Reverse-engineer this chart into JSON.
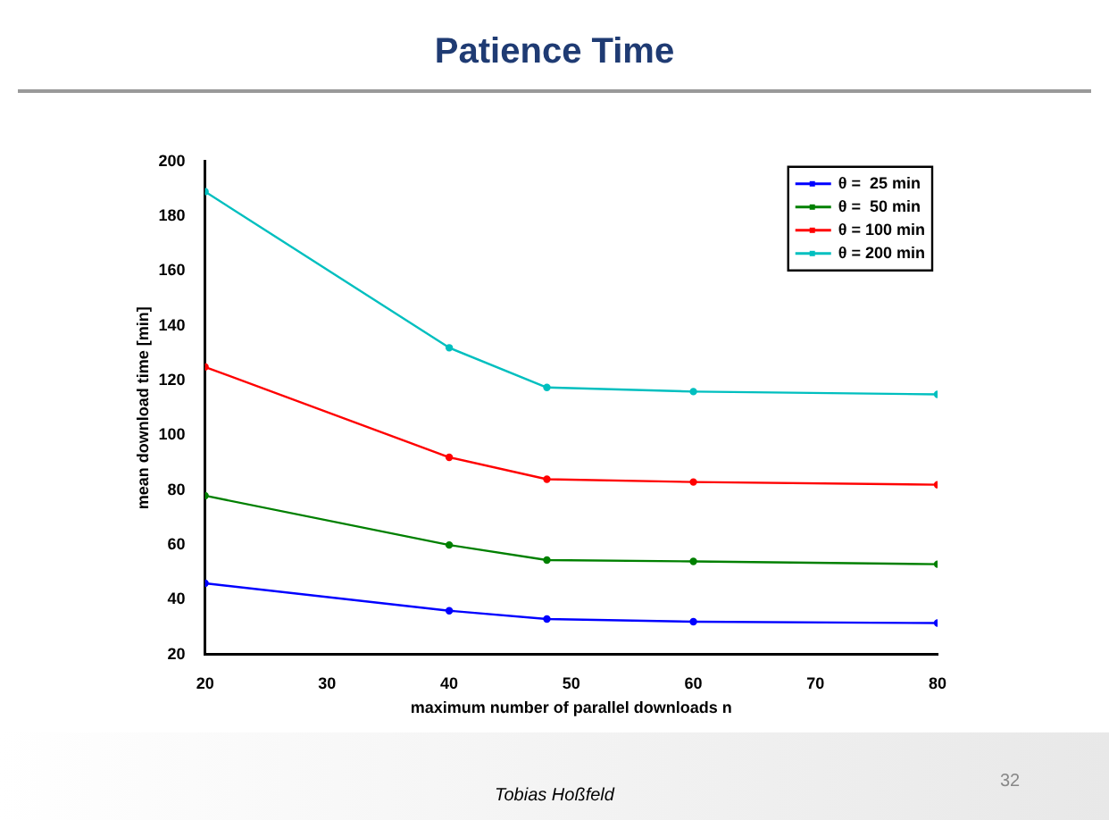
{
  "chart_data": {
    "type": "line",
    "title": "Patience Time",
    "xlabel": "maximum number of parallel downloads n",
    "ylabel": "mean download time [min]",
    "x": [
      20,
      40,
      48,
      60,
      80
    ],
    "series": [
      {
        "name": "θ =  25 min",
        "color": "#0000ff",
        "values": [
          46,
          36,
          33,
          32,
          31.5
        ]
      },
      {
        "name": "θ =  50 min",
        "color": "#008000",
        "values": [
          78,
          60,
          54.5,
          54,
          53
        ]
      },
      {
        "name": "θ = 100 min",
        "color": "#ff0000",
        "values": [
          125,
          92,
          84,
          83,
          82
        ]
      },
      {
        "name": "θ = 200 min",
        "color": "#00bfbf",
        "values": [
          189,
          132,
          117.5,
          116,
          115
        ]
      }
    ],
    "xlim": [
      20,
      80
    ],
    "xticks": [
      20,
      30,
      40,
      50,
      60,
      70,
      80
    ],
    "ylim": [
      20,
      200
    ],
    "yticks": [
      20,
      40,
      60,
      80,
      100,
      120,
      140,
      160,
      180,
      200
    ],
    "grid": false,
    "legend": "top right",
    "marker": "circle",
    "line_style": "solid",
    "annotations": [
      "Tobias Hoßfeld",
      "32"
    ]
  }
}
